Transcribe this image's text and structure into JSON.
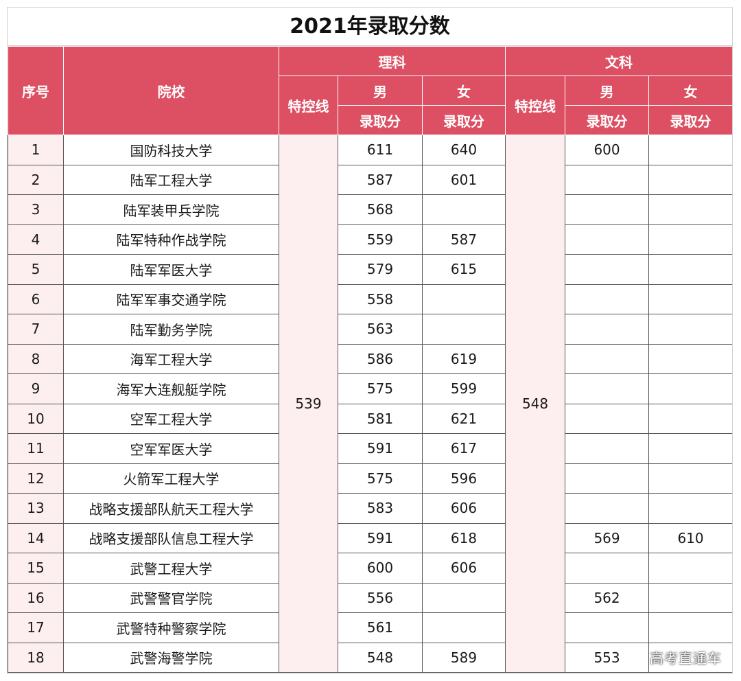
{
  "title": "2021年录取分数",
  "header": {
    "no": "序号",
    "school": "院校",
    "science": "理科",
    "arts": "文科",
    "special_line": "特控线",
    "male": "男",
    "female": "女",
    "score": "录取分"
  },
  "special_lines": {
    "science": "539",
    "arts": "548"
  },
  "rows": [
    {
      "no": "1",
      "school": "国防科技大学",
      "sci_m": "611",
      "sci_f": "640",
      "arts_m": "600",
      "arts_f": ""
    },
    {
      "no": "2",
      "school": "陆军工程大学",
      "sci_m": "587",
      "sci_f": "601",
      "arts_m": "",
      "arts_f": ""
    },
    {
      "no": "3",
      "school": "陆军装甲兵学院",
      "sci_m": "568",
      "sci_f": "",
      "arts_m": "",
      "arts_f": ""
    },
    {
      "no": "4",
      "school": "陆军特种作战学院",
      "sci_m": "559",
      "sci_f": "587",
      "arts_m": "",
      "arts_f": ""
    },
    {
      "no": "5",
      "school": "陆军军医大学",
      "sci_m": "579",
      "sci_f": "615",
      "arts_m": "",
      "arts_f": ""
    },
    {
      "no": "6",
      "school": "陆军军事交通学院",
      "sci_m": "558",
      "sci_f": "",
      "arts_m": "",
      "arts_f": ""
    },
    {
      "no": "7",
      "school": "陆军勤务学院",
      "sci_m": "563",
      "sci_f": "",
      "arts_m": "",
      "arts_f": ""
    },
    {
      "no": "8",
      "school": "海军工程大学",
      "sci_m": "586",
      "sci_f": "619",
      "arts_m": "",
      "arts_f": ""
    },
    {
      "no": "9",
      "school": "海军大连舰艇学院",
      "sci_m": "575",
      "sci_f": "599",
      "arts_m": "",
      "arts_f": ""
    },
    {
      "no": "10",
      "school": "空军工程大学",
      "sci_m": "581",
      "sci_f": "621",
      "arts_m": "",
      "arts_f": ""
    },
    {
      "no": "11",
      "school": "空军军医大学",
      "sci_m": "591",
      "sci_f": "617",
      "arts_m": "",
      "arts_f": ""
    },
    {
      "no": "12",
      "school": "火箭军工程大学",
      "sci_m": "575",
      "sci_f": "596",
      "arts_m": "",
      "arts_f": ""
    },
    {
      "no": "13",
      "school": "战略支援部队航天工程大学",
      "sci_m": "583",
      "sci_f": "606",
      "arts_m": "",
      "arts_f": ""
    },
    {
      "no": "14",
      "school": "战略支援部队信息工程大学",
      "sci_m": "591",
      "sci_f": "618",
      "arts_m": "569",
      "arts_f": "610"
    },
    {
      "no": "15",
      "school": "武警工程大学",
      "sci_m": "600",
      "sci_f": "606",
      "arts_m": "",
      "arts_f": ""
    },
    {
      "no": "16",
      "school": "武警警官学院",
      "sci_m": "556",
      "sci_f": "",
      "arts_m": "562",
      "arts_f": ""
    },
    {
      "no": "17",
      "school": "武警特种警察学院",
      "sci_m": "561",
      "sci_f": "",
      "arts_m": "",
      "arts_f": ""
    },
    {
      "no": "18",
      "school": "武警海警学院",
      "sci_m": "548",
      "sci_f": "589",
      "arts_m": "553",
      "arts_f": ""
    }
  ],
  "watermark": "高考直通车",
  "colors": {
    "header_bg": "#dd4f63",
    "header_text": "#ffffff",
    "tint_bg": "#fdeef0"
  }
}
